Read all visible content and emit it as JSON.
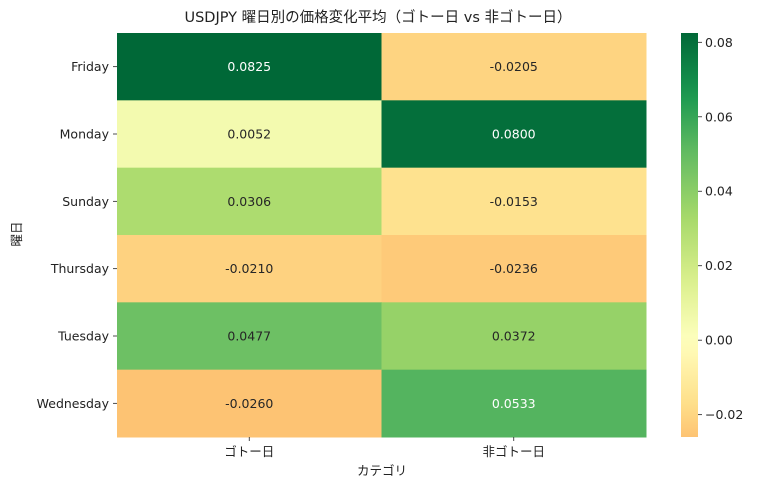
{
  "chart_data": {
    "type": "heatmap",
    "title": "USDJPY 曜日別の価格変化平均（ゴトー日 vs 非ゴトー日）",
    "xlabel": "カテゴリ",
    "ylabel": "曜日",
    "columns": [
      "ゴトー日",
      "非ゴトー日"
    ],
    "rows": [
      "Friday",
      "Monday",
      "Sunday",
      "Thursday",
      "Tuesday",
      "Wednesday"
    ],
    "values": [
      [
        0.0825,
        -0.0205
      ],
      [
        0.0052,
        0.08
      ],
      [
        0.0306,
        -0.0153
      ],
      [
        -0.021,
        -0.0236
      ],
      [
        0.0477,
        0.0372
      ],
      [
        -0.026,
        0.0533
      ]
    ],
    "cell_labels": [
      [
        "0.0825",
        "-0.0205"
      ],
      [
        "0.0052",
        "0.0800"
      ],
      [
        "0.0306",
        "-0.0153"
      ],
      [
        "-0.0210",
        "-0.0236"
      ],
      [
        "0.0477",
        "0.0372"
      ],
      [
        "-0.0260",
        "0.0533"
      ]
    ],
    "colormap": "RdYlGn",
    "center": 0,
    "vmin": -0.026,
    "vmax": 0.0825,
    "colorbar_ticks": [
      0.08,
      0.06,
      0.04,
      0.02,
      0.0,
      -0.02
    ],
    "colorbar_tick_labels": [
      "0.08",
      "0.06",
      "0.04",
      "0.02",
      "0.00",
      "−0.02"
    ],
    "light_text_color": "#ffffff",
    "dark_text_color": "#262626"
  }
}
